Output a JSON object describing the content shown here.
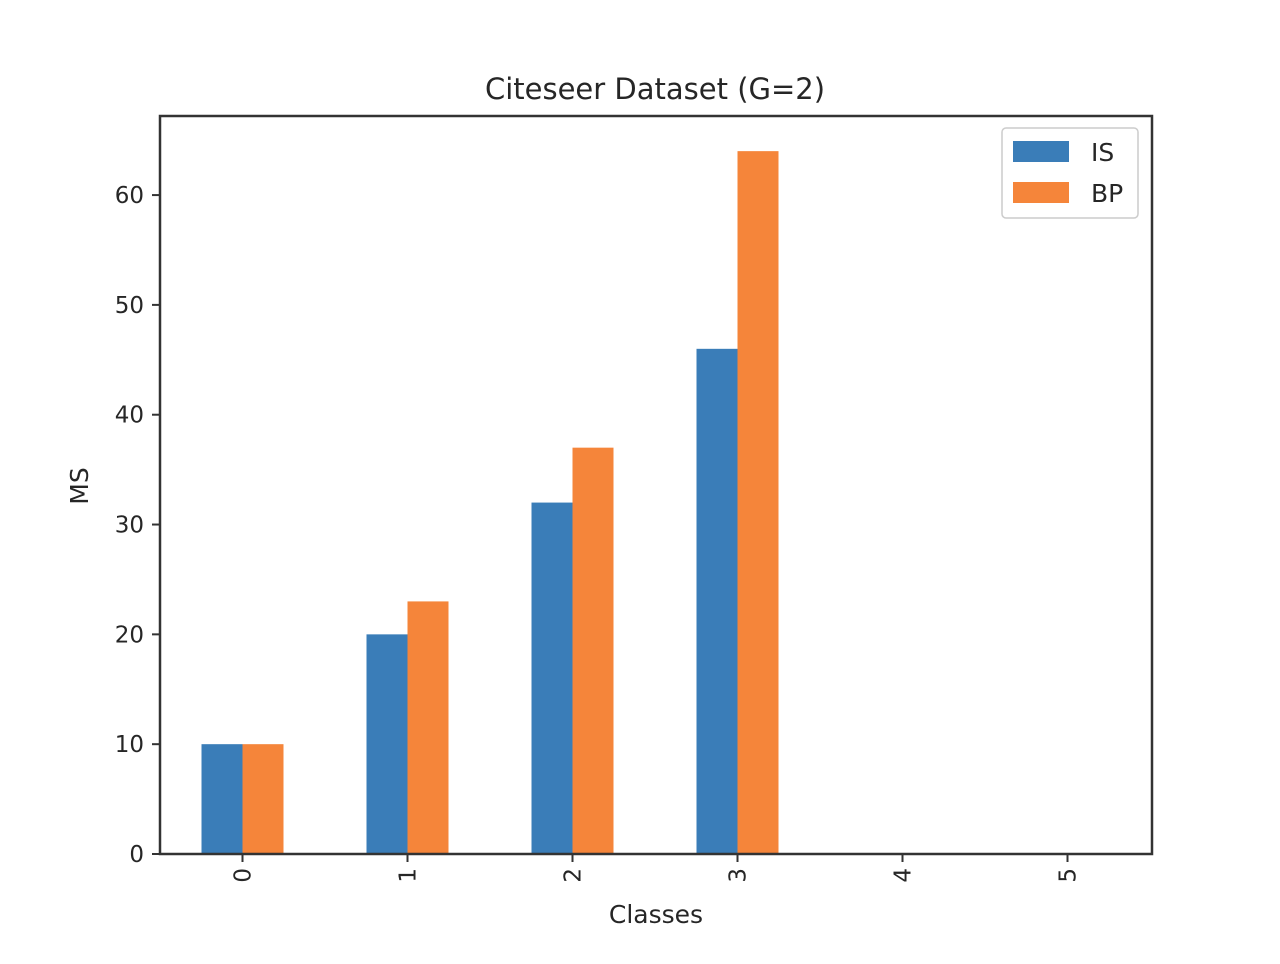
{
  "chart_data": {
    "type": "bar",
    "title": "Citeseer Dataset (G=2)",
    "xlabel": "Classes",
    "ylabel": "MS",
    "categories": [
      "0",
      "1",
      "2",
      "3",
      "4",
      "5"
    ],
    "series": [
      {
        "name": "IS",
        "color": "#3a7db8",
        "values": [
          10,
          20,
          32,
          46,
          0,
          0
        ]
      },
      {
        "name": "BP",
        "color": "#f5853a",
        "values": [
          10,
          23,
          37,
          64,
          0,
          0
        ]
      }
    ],
    "ylim": [
      0,
      67.2
    ],
    "yticks": [
      0,
      10,
      20,
      30,
      40,
      50,
      60
    ],
    "x_tick_rotation": "vertical",
    "grid": false,
    "legend_position": "top-right"
  }
}
